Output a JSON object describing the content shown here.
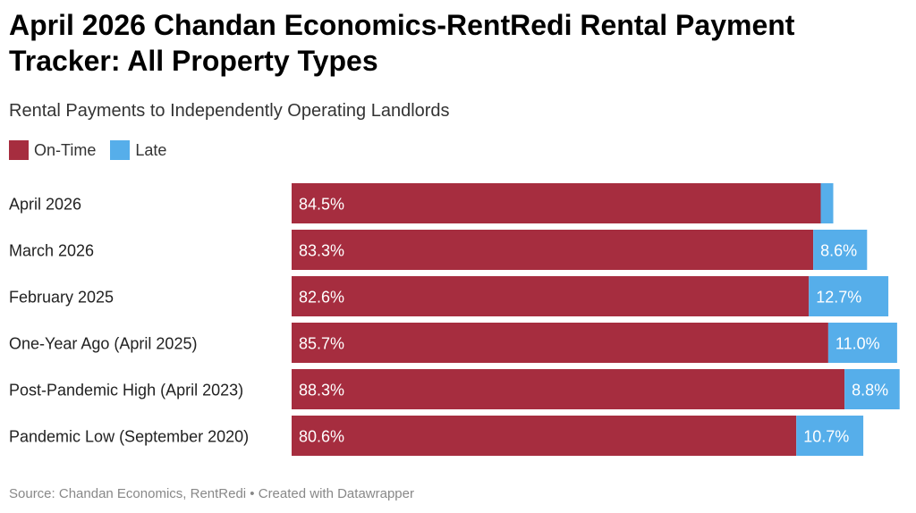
{
  "title": "April 2026 Chandan Economics-RentRedi Rental Payment Tracker: All Property Types",
  "subtitle": "Rental Payments to Independently Operating Landlords",
  "source": "Source: Chandan Economics, RentRedi • Created with Datawrapper",
  "colors": {
    "on_time": "#a62d3f",
    "late": "#56aeea"
  },
  "chart_data": {
    "type": "bar",
    "orientation": "horizontal",
    "stacked": true,
    "categories": [
      "April 2026",
      "March 2026",
      "February 2025",
      "One-Year Ago (April 2025)",
      "Post-Pandemic High (April 2023)",
      "Pandemic Low (September 2020)"
    ],
    "series": [
      {
        "name": "On-Time",
        "values": [
          84.5,
          83.3,
          82.6,
          85.7,
          88.3,
          80.6
        ],
        "labels": [
          "84.5%",
          "83.3%",
          "82.6%",
          "85.7%",
          "88.3%",
          "80.6%"
        ]
      },
      {
        "name": "Late",
        "values": [
          2.0,
          8.6,
          12.7,
          11.0,
          8.8,
          10.7
        ],
        "labels": [
          "",
          "8.6%",
          "12.7%",
          "11.0%",
          "8.8%",
          "10.7%"
        ]
      }
    ],
    "xlim": [
      0,
      100
    ],
    "legend_position": "top-left",
    "grid": false
  }
}
